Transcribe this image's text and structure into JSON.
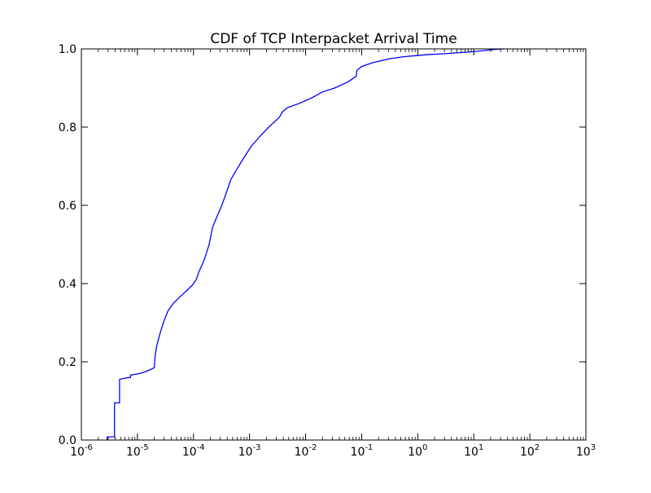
{
  "chart_data": {
    "type": "line",
    "title": "CDF of TCP Interpacket Arrival Time",
    "xlabel": "",
    "ylabel": "",
    "xscale": "log",
    "xlim": [
      1e-06,
      1000
    ],
    "ylim": [
      0.0,
      1.0
    ],
    "grid": false,
    "legend": "none",
    "x_tick_labels": [
      {
        "base": "10",
        "exp": "-6",
        "value": 1e-06
      },
      {
        "base": "10",
        "exp": "-5",
        "value": 1e-05
      },
      {
        "base": "10",
        "exp": "-4",
        "value": 0.0001
      },
      {
        "base": "10",
        "exp": "-3",
        "value": 0.001
      },
      {
        "base": "10",
        "exp": "-2",
        "value": 0.01
      },
      {
        "base": "10",
        "exp": "-1",
        "value": 0.1
      },
      {
        "base": "10",
        "exp": "0",
        "value": 1
      },
      {
        "base": "10",
        "exp": "1",
        "value": 10
      },
      {
        "base": "10",
        "exp": "2",
        "value": 100
      },
      {
        "base": "10",
        "exp": "3",
        "value": 1000
      }
    ],
    "y_tick_labels": [
      "0.0",
      "0.2",
      "0.4",
      "0.6",
      "0.8",
      "1.0"
    ],
    "y_tick_values": [
      0.0,
      0.2,
      0.4,
      0.6,
      0.8,
      1.0
    ],
    "series": [
      {
        "color": "#0000ff",
        "points": [
          [
            2.9e-06,
            0.0
          ],
          [
            2.9e-06,
            0.008
          ],
          [
            3.9e-06,
            0.008
          ],
          [
            3.9e-06,
            0.095
          ],
          [
            4.8e-06,
            0.095
          ],
          [
            4.8e-06,
            0.155
          ],
          [
            5.5e-06,
            0.157
          ],
          [
            6.5e-06,
            0.159
          ],
          [
            7.5e-06,
            0.16
          ],
          [
            7.6e-06,
            0.166
          ],
          [
            9e-06,
            0.168
          ],
          [
            1.1e-05,
            0.17
          ],
          [
            1.4e-05,
            0.175
          ],
          [
            1.7e-05,
            0.18
          ],
          [
            2e-05,
            0.185
          ],
          [
            2.05e-05,
            0.21
          ],
          [
            2.2e-05,
            0.24
          ],
          [
            2.5e-05,
            0.27
          ],
          [
            2.9e-05,
            0.3
          ],
          [
            3.5e-05,
            0.33
          ],
          [
            4.4e-05,
            0.35
          ],
          [
            5.6e-05,
            0.365
          ],
          [
            7.3e-05,
            0.38
          ],
          [
            9.4e-05,
            0.395
          ],
          [
            0.000112,
            0.41
          ],
          [
            0.000125,
            0.43
          ],
          [
            0.000155,
            0.46
          ],
          [
            0.00019,
            0.5
          ],
          [
            0.00022,
            0.545
          ],
          [
            0.00026,
            0.57
          ],
          [
            0.00032,
            0.6
          ],
          [
            0.00038,
            0.63
          ],
          [
            0.00046,
            0.665
          ],
          [
            0.00058,
            0.69
          ],
          [
            0.00078,
            0.72
          ],
          [
            0.00106,
            0.75
          ],
          [
            0.0015,
            0.775
          ],
          [
            0.0022,
            0.8
          ],
          [
            0.0034,
            0.825
          ],
          [
            0.0039,
            0.84
          ],
          [
            0.0048,
            0.85
          ],
          [
            0.0075,
            0.86
          ],
          [
            0.013,
            0.875
          ],
          [
            0.02,
            0.89
          ],
          [
            0.033,
            0.9
          ],
          [
            0.056,
            0.915
          ],
          [
            0.08,
            0.93
          ],
          [
            0.082,
            0.945
          ],
          [
            0.1,
            0.955
          ],
          [
            0.16,
            0.965
          ],
          [
            0.32,
            0.975
          ],
          [
            0.56,
            0.98
          ],
          [
            1.4,
            0.985
          ],
          [
            3.2,
            0.988
          ],
          [
            8.0,
            0.992
          ],
          [
            14,
            0.995
          ],
          [
            25,
            0.999
          ],
          [
            35,
            1.0
          ]
        ]
      }
    ]
  }
}
